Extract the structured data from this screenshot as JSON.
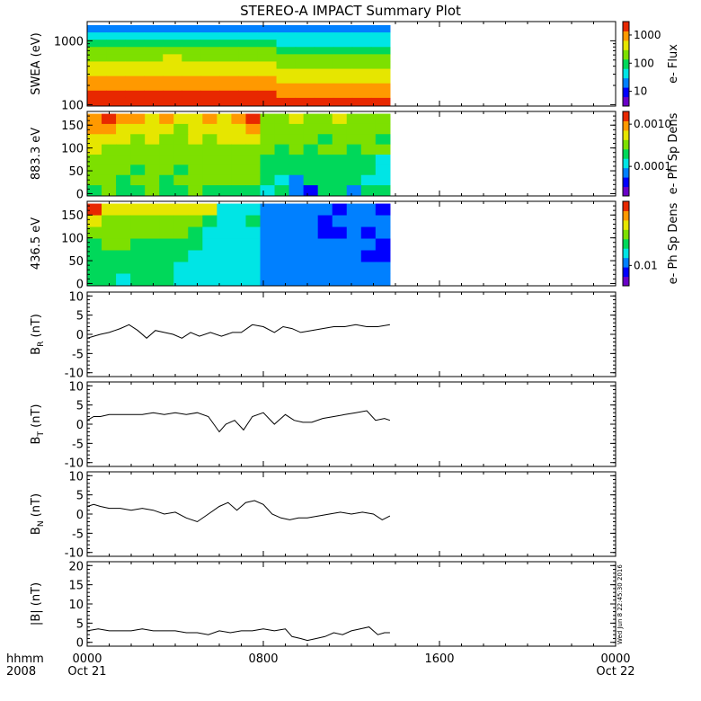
{
  "title": "STEREO-A IMPACT Summary Plot",
  "stamp": "Wed Jun  8 22:45:30 2016",
  "time_axis": {
    "corner_labels": [
      "hhmm",
      "2008"
    ],
    "ticks": [
      {
        "hhmm": "0000",
        "date": "Oct 21"
      },
      {
        "hhmm": "0800",
        "date": ""
      },
      {
        "hhmm": "1600",
        "date": ""
      },
      {
        "hhmm": "0000",
        "date": "Oct 22"
      }
    ],
    "range_hours": [
      0,
      24
    ],
    "data_end_hour": 13.75
  },
  "colormap": [
    "#6a00c8",
    "#0000ff",
    "#0080ff",
    "#00e5e5",
    "#00d85a",
    "#7de000",
    "#e6e600",
    "#ff9900",
    "#e82800"
  ],
  "chart_data": [
    {
      "type": "heatmap",
      "panel": "swea",
      "ylabel": "SWEA (eV)",
      "yscale": "log",
      "ylim": [
        95,
        2000
      ],
      "yticks": [
        "100",
        "1000"
      ],
      "colorbar": {
        "label": "e- Flux",
        "scale": "log",
        "range": [
          3,
          3000
        ],
        "ticks": [
          "10",
          "100",
          "1000"
        ]
      },
      "rows": [
        [
          2,
          2,
          2,
          2,
          2,
          2,
          2,
          2,
          2,
          2,
          2,
          2,
          2,
          2,
          2,
          2
        ],
        [
          3,
          3,
          3,
          3,
          3,
          3,
          3,
          3,
          3,
          3,
          3,
          3,
          3,
          3,
          3,
          3
        ],
        [
          4,
          4,
          4,
          4,
          4,
          4,
          4,
          4,
          4,
          4,
          3,
          3,
          3,
          3,
          3,
          3
        ],
        [
          5,
          5,
          5,
          5,
          5,
          5,
          5,
          5,
          5,
          5,
          4,
          4,
          4,
          4,
          4,
          4
        ],
        [
          5,
          5,
          5,
          5,
          6,
          5,
          5,
          5,
          5,
          5,
          5,
          5,
          5,
          5,
          5,
          5
        ],
        [
          6,
          6,
          6,
          6,
          6,
          6,
          6,
          6,
          6,
          6,
          5,
          5,
          5,
          5,
          5,
          5
        ],
        [
          6,
          6,
          6,
          6,
          6,
          6,
          6,
          6,
          6,
          6,
          6,
          6,
          6,
          6,
          6,
          6
        ],
        [
          7,
          7,
          7,
          7,
          7,
          7,
          7,
          7,
          7,
          7,
          6,
          6,
          6,
          6,
          6,
          6
        ],
        [
          7,
          7,
          7,
          7,
          7,
          7,
          7,
          7,
          7,
          7,
          7,
          7,
          7,
          7,
          7,
          7
        ],
        [
          8,
          8,
          8,
          8,
          8,
          8,
          8,
          8,
          8,
          8,
          7,
          7,
          7,
          7,
          7,
          7
        ],
        [
          8,
          8,
          8,
          8,
          8,
          8,
          8,
          8,
          8,
          8,
          8,
          8,
          8,
          8,
          8,
          8
        ]
      ]
    },
    {
      "type": "heatmap",
      "panel": "pad883",
      "ylabel": "883.3 eV",
      "ylim": [
        -5,
        180
      ],
      "yticks": [
        "0",
        "50",
        "100",
        "150"
      ],
      "colorbar": {
        "label": "e- Ph Sp Dens",
        "scale": "log",
        "range": [
          2e-05,
          0.002
        ],
        "ticks": [
          "0.0001",
          "0.0010"
        ]
      },
      "rows": [
        [
          7,
          8,
          7,
          7,
          6,
          7,
          6,
          6,
          7,
          6,
          7,
          8,
          5,
          5,
          6,
          5,
          5,
          6,
          5,
          5,
          5
        ],
        [
          7,
          7,
          6,
          6,
          6,
          6,
          5,
          6,
          6,
          6,
          6,
          7,
          5,
          5,
          5,
          5,
          5,
          5,
          5,
          5,
          5
        ],
        [
          6,
          6,
          6,
          5,
          6,
          5,
          5,
          6,
          5,
          6,
          6,
          6,
          5,
          5,
          5,
          5,
          4,
          5,
          5,
          5,
          4
        ],
        [
          6,
          5,
          5,
          5,
          5,
          5,
          5,
          5,
          5,
          5,
          5,
          5,
          5,
          4,
          5,
          4,
          5,
          5,
          4,
          5,
          5
        ],
        [
          5,
          5,
          5,
          5,
          5,
          5,
          5,
          5,
          5,
          5,
          5,
          5,
          4,
          4,
          4,
          4,
          4,
          4,
          4,
          4,
          3
        ],
        [
          5,
          5,
          5,
          4,
          5,
          5,
          4,
          5,
          5,
          5,
          5,
          5,
          4,
          4,
          4,
          4,
          4,
          4,
          4,
          4,
          3
        ],
        [
          5,
          5,
          4,
          5,
          5,
          4,
          5,
          5,
          5,
          5,
          5,
          5,
          4,
          3,
          2,
          4,
          4,
          4,
          4,
          3,
          3
        ],
        [
          4,
          5,
          4,
          4,
          5,
          4,
          4,
          5,
          4,
          4,
          4,
          4,
          3,
          4,
          2,
          1,
          4,
          4,
          2,
          4,
          4
        ]
      ]
    },
    {
      "type": "heatmap",
      "panel": "pad436",
      "ylabel": "436.5 eV",
      "ylim": [
        -5,
        180
      ],
      "yticks": [
        "0",
        "50",
        "100",
        "150"
      ],
      "colorbar": {
        "label": "e- Ph Sp Dens",
        "scale": "log",
        "range": [
          0.006,
          0.05
        ],
        "ticks": [
          "0.01"
        ]
      },
      "rows": [
        [
          8,
          6,
          6,
          6,
          6,
          6,
          6,
          6,
          6,
          3,
          3,
          3,
          2,
          2,
          2,
          2,
          2,
          1,
          2,
          2,
          1
        ],
        [
          6,
          5,
          5,
          5,
          5,
          5,
          5,
          5,
          4,
          3,
          3,
          4,
          2,
          2,
          2,
          2,
          1,
          2,
          2,
          2,
          2
        ],
        [
          5,
          5,
          5,
          5,
          5,
          5,
          5,
          4,
          3,
          3,
          3,
          3,
          2,
          2,
          2,
          2,
          1,
          1,
          2,
          1,
          2
        ],
        [
          4,
          5,
          5,
          4,
          4,
          4,
          4,
          4,
          3,
          3,
          3,
          3,
          2,
          2,
          2,
          2,
          2,
          2,
          2,
          2,
          1
        ],
        [
          4,
          4,
          4,
          4,
          4,
          4,
          4,
          3,
          3,
          3,
          3,
          3,
          2,
          2,
          2,
          2,
          2,
          2,
          2,
          1,
          1
        ],
        [
          4,
          4,
          4,
          4,
          4,
          4,
          3,
          3,
          3,
          3,
          3,
          3,
          2,
          2,
          2,
          2,
          2,
          2,
          2,
          2,
          2
        ],
        [
          4,
          4,
          3,
          4,
          4,
          4,
          3,
          3,
          3,
          3,
          3,
          3,
          2,
          2,
          2,
          2,
          2,
          2,
          2,
          2,
          2
        ]
      ]
    },
    {
      "type": "line",
      "panel": "br",
      "ylabel": "B_R (nT)",
      "ylim": [
        -11,
        11
      ],
      "yticks": [
        "-10",
        "-5",
        "0",
        "5",
        "10"
      ],
      "x": [
        0,
        0.3,
        0.6,
        1,
        1.5,
        1.9,
        2.3,
        2.7,
        3.1,
        3.5,
        3.9,
        4.3,
        4.7,
        5.1,
        5.6,
        6.1,
        6.6,
        7,
        7.5,
        8,
        8.5,
        8.9,
        9.3,
        9.7,
        10.2,
        10.7,
        11.2,
        11.7,
        12.2,
        12.7,
        13.2,
        13.75
      ],
      "values": [
        -1,
        -0.5,
        0,
        0.5,
        1.5,
        2.5,
        1,
        -1,
        1,
        0.5,
        0,
        -1,
        0.5,
        -0.5,
        0.5,
        -0.5,
        0.5,
        0.5,
        2.5,
        2,
        0.5,
        2,
        1.5,
        0.5,
        1,
        1.5,
        2,
        2,
        2.5,
        2,
        2,
        2.5
      ]
    },
    {
      "type": "line",
      "panel": "bt",
      "ylabel": "B_T (nT)",
      "ylim": [
        -11,
        11
      ],
      "yticks": [
        "-10",
        "-5",
        "0",
        "5",
        "10"
      ],
      "x": [
        0,
        0.3,
        0.6,
        1,
        1.5,
        2,
        2.5,
        3,
        3.5,
        4,
        4.5,
        5,
        5.5,
        6,
        6.3,
        6.7,
        7.1,
        7.5,
        8,
        8.5,
        9,
        9.4,
        9.8,
        10.2,
        10.7,
        11.2,
        11.7,
        12.2,
        12.7,
        13.1,
        13.5,
        13.75
      ],
      "values": [
        1,
        2,
        2,
        2.5,
        2.5,
        2.5,
        2.5,
        3,
        2.5,
        3,
        2.5,
        3,
        2,
        -2,
        0,
        1,
        -1.5,
        2,
        3,
        0,
        2.5,
        1,
        0.5,
        0.5,
        1.5,
        2,
        2.5,
        3,
        3.5,
        1,
        1.5,
        1
      ]
    },
    {
      "type": "line",
      "panel": "bn",
      "ylabel": "B_N (nT)",
      "ylim": [
        -11,
        11
      ],
      "yticks": [
        "-10",
        "-5",
        "0",
        "5",
        "10"
      ],
      "x": [
        0,
        0.3,
        0.6,
        1,
        1.5,
        2,
        2.5,
        3,
        3.5,
        4,
        4.5,
        5,
        5.5,
        6,
        6.4,
        6.8,
        7.2,
        7.6,
        8,
        8.4,
        8.8,
        9.2,
        9.6,
        10,
        10.5,
        11,
        11.5,
        12,
        12.5,
        13,
        13.4,
        13.75
      ],
      "values": [
        2,
        2.5,
        2,
        1.5,
        1.5,
        1,
        1.5,
        1,
        0,
        0.5,
        -1,
        -2,
        0,
        2,
        3,
        1,
        3,
        3.5,
        2.5,
        0,
        -1,
        -1.5,
        -1,
        -1,
        -0.5,
        0,
        0.5,
        0,
        0.5,
        0,
        -1.5,
        -0.5
      ]
    },
    {
      "type": "line",
      "panel": "bmag",
      "ylabel": "|B| (nT)",
      "ylim": [
        -1,
        21
      ],
      "yticks": [
        "0",
        "5",
        "10",
        "15",
        "20"
      ],
      "x": [
        0,
        0.5,
        1,
        1.5,
        2,
        2.5,
        3,
        3.5,
        4,
        4.5,
        5,
        5.5,
        6,
        6.5,
        7,
        7.5,
        8,
        8.5,
        9,
        9.3,
        9.7,
        10,
        10.4,
        10.8,
        11.2,
        11.6,
        12,
        12.4,
        12.8,
        13.2,
        13.5,
        13.75
      ],
      "values": [
        3,
        3.5,
        3,
        3,
        3,
        3.5,
        3,
        3,
        3,
        2.5,
        2.5,
        2,
        3,
        2.5,
        3,
        3,
        3.5,
        3,
        3.5,
        1.5,
        1,
        0.5,
        1,
        1.5,
        2.5,
        2,
        3,
        3.5,
        4,
        2,
        2.5,
        2.5
      ]
    }
  ]
}
